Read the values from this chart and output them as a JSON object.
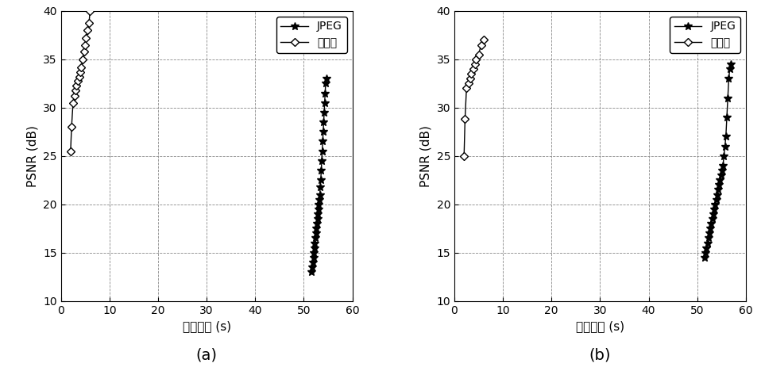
{
  "title_a": "(a)",
  "title_b": "(b)",
  "xlabel": "编码时间 (s)",
  "ylabel": "PSNR (dB)",
  "ylim": [
    10,
    40
  ],
  "xlim": [
    0,
    60
  ],
  "yticks": [
    10,
    15,
    20,
    25,
    30,
    35,
    40
  ],
  "xticks": [
    0,
    10,
    20,
    30,
    40,
    50,
    60
  ],
  "jpeg_a_x": [
    51.5,
    51.7,
    51.9,
    52.0,
    52.1,
    52.2,
    52.3,
    52.4,
    52.5,
    52.6,
    52.7,
    52.8,
    52.9,
    53.0,
    53.1,
    53.2,
    53.3,
    53.4,
    53.5,
    53.6,
    53.7,
    53.8,
    53.9,
    54.0,
    54.1,
    54.2,
    54.3,
    54.4,
    54.5,
    54.6
  ],
  "jpeg_a_y": [
    13.0,
    13.5,
    14.0,
    14.5,
    15.0,
    15.5,
    16.0,
    16.5,
    17.0,
    17.5,
    18.0,
    18.5,
    19.0,
    19.5,
    20.0,
    20.5,
    21.0,
    21.8,
    22.5,
    23.5,
    24.5,
    25.5,
    26.5,
    27.5,
    28.5,
    29.5,
    30.5,
    31.5,
    32.5,
    33.0
  ],
  "cs_a_x": [
    2.0,
    2.2,
    2.5,
    2.8,
    3.0,
    3.2,
    3.5,
    3.8,
    4.0,
    4.2,
    4.5,
    4.8,
    5.0,
    5.2,
    5.5,
    5.8,
    6.0
  ],
  "cs_a_y": [
    25.5,
    28.0,
    30.5,
    31.2,
    31.8,
    32.3,
    32.8,
    33.2,
    33.7,
    34.2,
    35.0,
    35.8,
    36.5,
    37.2,
    38.0,
    38.8,
    40.0
  ],
  "jpeg_b_x": [
    51.5,
    51.7,
    51.9,
    52.1,
    52.3,
    52.5,
    52.7,
    52.9,
    53.1,
    53.3,
    53.5,
    53.7,
    53.9,
    54.1,
    54.3,
    54.5,
    54.7,
    54.9,
    55.1,
    55.3,
    55.5,
    55.7,
    55.9,
    56.1,
    56.3,
    56.5,
    56.7,
    56.9
  ],
  "jpeg_b_y": [
    14.5,
    15.0,
    15.5,
    16.0,
    16.5,
    17.0,
    17.5,
    18.0,
    18.5,
    19.0,
    19.5,
    20.0,
    20.5,
    21.0,
    21.5,
    22.0,
    22.5,
    23.0,
    23.5,
    24.0,
    25.0,
    26.0,
    27.0,
    29.0,
    31.0,
    33.0,
    34.0,
    34.5
  ],
  "cs_b_x": [
    2.0,
    2.2,
    2.5,
    3.0,
    3.2,
    3.5,
    4.0,
    4.2,
    4.5,
    5.0,
    5.5,
    6.0
  ],
  "cs_b_y": [
    25.0,
    28.8,
    32.0,
    32.5,
    33.0,
    33.5,
    34.0,
    34.5,
    35.0,
    35.5,
    36.5,
    37.0
  ],
  "legend_jpeg": "JPEG",
  "legend_cs": "本发明",
  "line_color": "black",
  "background_color": "white"
}
